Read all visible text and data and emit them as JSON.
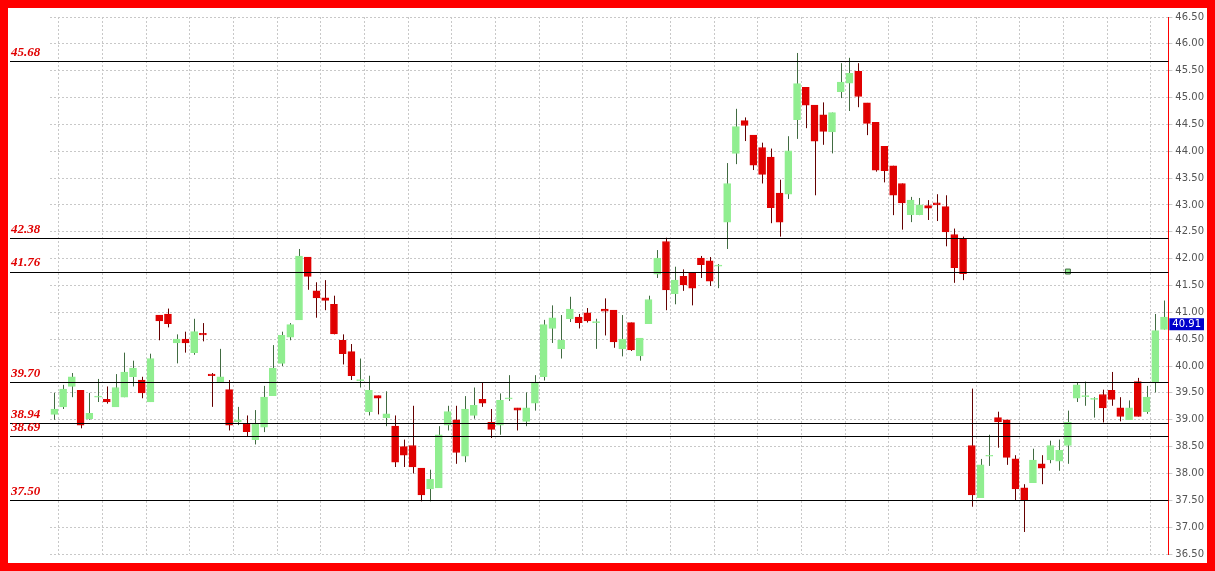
{
  "chart_data": {
    "type": "candlestick",
    "categories": [
      null,
      null,
      null,
      null,
      null,
      null,
      null,
      null,
      null,
      null,
      null,
      null,
      null,
      null,
      null,
      null,
      null,
      null,
      null,
      null,
      null,
      null,
      null,
      null,
      null,
      null,
      null,
      null,
      null,
      null,
      null,
      null,
      null,
      null,
      null,
      null,
      null,
      null,
      null,
      null,
      null,
      null,
      null,
      null,
      null,
      null,
      null,
      null,
      null,
      null,
      null,
      null,
      null,
      null,
      null,
      null,
      null,
      null,
      null,
      null,
      null,
      null,
      null,
      null,
      null,
      null,
      null,
      null,
      null,
      null,
      null,
      null,
      null,
      null,
      null,
      null,
      null,
      null,
      null,
      null,
      null,
      null,
      null,
      null,
      null,
      null,
      null,
      null,
      null,
      null,
      null,
      null,
      null,
      null,
      null,
      null,
      null,
      null,
      null,
      null,
      null,
      null,
      null,
      null,
      null,
      null,
      null,
      null,
      null,
      null,
      null,
      null,
      null,
      null,
      null,
      null,
      null,
      null,
      null,
      null,
      null,
      null,
      null,
      null,
      null,
      null,
      null,
      null
    ],
    "ohlc": [
      [
        39.1,
        39.5,
        39.0,
        39.2
      ],
      [
        39.24,
        39.65,
        39.2,
        39.57
      ],
      [
        39.62,
        39.87,
        39.42,
        39.8
      ],
      [
        39.55,
        39.55,
        38.84,
        38.9
      ],
      [
        39.02,
        39.5,
        39.0,
        39.12
      ],
      [
        39.42,
        39.76,
        39.33,
        39.42
      ],
      [
        39.38,
        39.62,
        39.3,
        39.33
      ],
      [
        39.24,
        39.85,
        39.24,
        39.6
      ],
      [
        39.42,
        40.25,
        39.42,
        39.89
      ],
      [
        39.8,
        40.1,
        39.62,
        39.96
      ],
      [
        39.74,
        39.8,
        39.4,
        39.5
      ],
      [
        39.33,
        40.23,
        39.33,
        40.14
      ],
      [
        40.95,
        40.95,
        40.48,
        40.84
      ],
      [
        40.97,
        41.07,
        40.72,
        40.79
      ],
      [
        40.43,
        40.59,
        40.05,
        40.5
      ],
      [
        40.5,
        40.64,
        40.25,
        40.43
      ],
      [
        40.25,
        40.88,
        40.21,
        40.64
      ],
      [
        40.61,
        40.8,
        40.46,
        40.58
      ],
      [
        39.85,
        39.87,
        39.24,
        39.82
      ],
      [
        39.69,
        40.32,
        39.69,
        39.8
      ],
      [
        39.56,
        39.74,
        38.8,
        38.9
      ],
      [
        38.96,
        39.24,
        38.9,
        39.0
      ],
      [
        38.93,
        39.08,
        38.68,
        38.78
      ],
      [
        38.63,
        39.18,
        38.54,
        38.93
      ],
      [
        38.86,
        39.63,
        38.77,
        39.42
      ],
      [
        39.45,
        40.39,
        39.45,
        39.96
      ],
      [
        40.05,
        40.64,
        40.0,
        40.57
      ],
      [
        40.54,
        40.8,
        40.48,
        40.77
      ],
      [
        40.86,
        42.18,
        40.86,
        42.05
      ],
      [
        42.03,
        42.03,
        41.42,
        41.67
      ],
      [
        41.4,
        41.56,
        40.9,
        41.27
      ],
      [
        41.27,
        41.6,
        41.04,
        41.22
      ],
      [
        41.15,
        41.31,
        40.59,
        40.6
      ],
      [
        40.48,
        40.59,
        40.03,
        40.23
      ],
      [
        40.27,
        40.41,
        39.74,
        39.82
      ],
      [
        39.73,
        40.14,
        39.6,
        39.75
      ],
      [
        39.15,
        39.82,
        39.08,
        39.55
      ],
      [
        39.45,
        39.45,
        39.1,
        39.4
      ],
      [
        39.04,
        39.53,
        38.88,
        39.11
      ],
      [
        38.88,
        39.08,
        38.12,
        38.21
      ],
      [
        38.5,
        38.63,
        38.12,
        38.34
      ],
      [
        38.52,
        39.26,
        38.0,
        38.12
      ],
      [
        38.1,
        38.1,
        37.48,
        37.6
      ],
      [
        37.71,
        38.07,
        37.48,
        37.89
      ],
      [
        37.73,
        38.88,
        37.73,
        38.72
      ],
      [
        38.9,
        39.26,
        38.8,
        39.15
      ],
      [
        39.0,
        39.26,
        38.18,
        38.39
      ],
      [
        38.32,
        39.44,
        38.21,
        39.2
      ],
      [
        39.08,
        39.6,
        39.02,
        39.27
      ],
      [
        39.38,
        39.69,
        39.24,
        39.31
      ],
      [
        38.95,
        39.2,
        38.66,
        38.82
      ],
      [
        38.9,
        39.49,
        38.72,
        39.36
      ],
      [
        39.39,
        39.83,
        39.35,
        39.41
      ],
      [
        39.22,
        39.22,
        38.8,
        39.18
      ],
      [
        38.97,
        39.51,
        38.88,
        39.22
      ],
      [
        39.31,
        39.83,
        39.17,
        39.7
      ],
      [
        39.8,
        40.86,
        39.73,
        40.77
      ],
      [
        40.7,
        41.13,
        40.43,
        40.9
      ],
      [
        40.32,
        40.95,
        40.14,
        40.48
      ],
      [
        40.88,
        41.29,
        40.82,
        41.06
      ],
      [
        40.91,
        40.97,
        40.7,
        40.81
      ],
      [
        40.99,
        41.08,
        40.81,
        40.84
      ],
      [
        40.81,
        40.88,
        40.32,
        40.83
      ],
      [
        41.06,
        41.26,
        40.57,
        41.02
      ],
      [
        41.04,
        41.04,
        40.34,
        40.45
      ],
      [
        40.32,
        40.95,
        40.18,
        40.5
      ],
      [
        40.81,
        40.81,
        40.28,
        40.3
      ],
      [
        40.19,
        40.52,
        40.1,
        40.52
      ],
      [
        40.79,
        41.31,
        40.79,
        41.24
      ],
      [
        41.71,
        42.16,
        41.64,
        42.01
      ],
      [
        42.32,
        42.39,
        41.04,
        41.42
      ],
      [
        41.35,
        41.85,
        41.15,
        41.6
      ],
      [
        41.67,
        41.8,
        41.4,
        41.51
      ],
      [
        41.74,
        41.74,
        41.13,
        41.45
      ],
      [
        42.01,
        42.05,
        41.64,
        41.89
      ],
      [
        41.96,
        42.03,
        41.49,
        41.58
      ],
      [
        41.86,
        41.9,
        41.45,
        41.88
      ],
      [
        42.68,
        43.78,
        42.18,
        43.4
      ],
      [
        43.96,
        44.79,
        43.76,
        44.46
      ],
      [
        44.57,
        44.63,
        44.19,
        44.48
      ],
      [
        44.3,
        44.3,
        43.65,
        43.74
      ],
      [
        44.07,
        44.16,
        43.4,
        43.57
      ],
      [
        43.89,
        44.05,
        42.66,
        42.95
      ],
      [
        43.22,
        43.47,
        42.41,
        42.68
      ],
      [
        43.2,
        44.28,
        43.11,
        44.01
      ],
      [
        44.59,
        45.83,
        44.23,
        45.26
      ],
      [
        45.19,
        45.19,
        44.43,
        44.86
      ],
      [
        44.86,
        44.86,
        43.18,
        44.19
      ],
      [
        44.68,
        44.91,
        44.12,
        44.37
      ],
      [
        44.36,
        44.72,
        43.96,
        44.72
      ],
      [
        45.11,
        45.64,
        44.99,
        45.29
      ],
      [
        45.27,
        45.74,
        44.75,
        45.45
      ],
      [
        45.49,
        45.64,
        44.82,
        45.02
      ],
      [
        44.9,
        44.9,
        44.3,
        44.52
      ],
      [
        44.54,
        44.54,
        43.62,
        43.65
      ],
      [
        44.09,
        44.09,
        43.42,
        43.64
      ],
      [
        43.73,
        43.73,
        42.81,
        43.18
      ],
      [
        43.4,
        43.4,
        42.54,
        43.04
      ],
      [
        42.82,
        43.15,
        42.68,
        43.09
      ],
      [
        42.82,
        43.13,
        42.81,
        43.0
      ],
      [
        42.99,
        43.09,
        42.72,
        42.94
      ],
      [
        43.04,
        43.2,
        42.7,
        43.0
      ],
      [
        42.97,
        43.18,
        42.23,
        42.5
      ],
      [
        42.45,
        42.56,
        41.55,
        41.83
      ],
      [
        42.37,
        42.41,
        41.6,
        41.72
      ],
      [
        38.52,
        39.58,
        37.38,
        37.6
      ],
      [
        37.55,
        38.27,
        37.55,
        38.16
      ],
      [
        38.32,
        38.72,
        38.14,
        38.32
      ],
      [
        39.04,
        39.15,
        38.48,
        38.96
      ],
      [
        39.0,
        39.0,
        38.16,
        38.3
      ],
      [
        38.27,
        38.34,
        37.5,
        37.71
      ],
      [
        37.73,
        37.8,
        36.91,
        37.5
      ],
      [
        37.83,
        38.46,
        37.83,
        38.25
      ],
      [
        38.18,
        38.34,
        37.8,
        38.1
      ],
      [
        38.25,
        38.61,
        38.19,
        38.52
      ],
      [
        38.23,
        38.63,
        38.05,
        38.43
      ],
      [
        38.52,
        39.17,
        38.18,
        38.95
      ],
      [
        39.4,
        39.69,
        39.33,
        39.65
      ],
      [
        39.43,
        39.71,
        39.26,
        39.45
      ],
      [
        39.38,
        39.42,
        39.04,
        39.38
      ],
      [
        39.47,
        39.56,
        38.95,
        39.22
      ],
      [
        39.55,
        39.89,
        39.26,
        39.38
      ],
      [
        39.22,
        39.42,
        38.97,
        39.06
      ],
      [
        39.0,
        39.36,
        39.0,
        39.22
      ],
      [
        39.71,
        39.78,
        39.06,
        39.06
      ],
      [
        39.15,
        39.63,
        39.11,
        39.42
      ],
      [
        39.69,
        40.97,
        39.51,
        40.66
      ],
      [
        40.68,
        41.22,
        40.68,
        40.91
      ]
    ],
    "colors": [
      "#90ee90",
      "#90ee90",
      "#90ee90",
      "#e00000",
      "#90ee90",
      "#90ee90",
      "#e00000",
      "#90ee90",
      "#90ee90",
      "#90ee90",
      "#e00000",
      "#90ee90",
      "#e00000",
      "#e00000",
      "#90ee90",
      "#e00000",
      "#90ee90",
      "#e00000",
      "#e00000",
      "#90ee90",
      "#e00000",
      "#90ee90",
      "#e00000",
      "#90ee90",
      "#90ee90",
      "#90ee90",
      "#90ee90",
      "#90ee90",
      "#90ee90",
      "#e00000",
      "#e00000",
      "#e00000",
      "#e00000",
      "#e00000",
      "#e00000",
      "#90ee90",
      "#90ee90",
      "#e00000",
      "#90ee90",
      "#e00000",
      "#e00000",
      "#e00000",
      "#e00000",
      "#90ee90",
      "#90ee90",
      "#90ee90",
      "#e00000",
      "#90ee90",
      "#90ee90",
      "#e00000",
      "#e00000",
      "#90ee90",
      "#90ee90",
      "#e00000",
      "#90ee90",
      "#90ee90",
      "#90ee90",
      "#90ee90",
      "#90ee90",
      "#90ee90",
      "#e00000",
      "#e00000",
      "#90ee90",
      "#e00000",
      "#e00000",
      "#90ee90",
      "#e00000",
      "#90ee90",
      "#90ee90",
      "#90ee90",
      "#e00000",
      "#90ee90",
      "#e00000",
      "#e00000",
      "#e00000",
      "#e00000",
      "#90ee90",
      "#90ee90",
      "#90ee90",
      "#e00000",
      "#e00000",
      "#e00000",
      "#e00000",
      "#e00000",
      "#90ee90",
      "#90ee90",
      "#e00000",
      "#e00000",
      "#e00000",
      "#90ee90",
      "#90ee90",
      "#90ee90",
      "#e00000",
      "#e00000",
      "#e00000",
      "#e00000",
      "#e00000",
      "#e00000",
      "#90ee90",
      "#90ee90",
      "#e00000",
      "#e00000",
      "#e00000",
      "#e00000",
      "#e00000",
      "#e00000",
      "#90ee90",
      "#90ee90",
      "#e00000",
      "#e00000",
      "#e00000",
      "#e00000",
      "#90ee90",
      "#e00000",
      "#90ee90",
      "#90ee90",
      "#90ee90",
      "#90ee90",
      "#90ee90",
      "#90ee90",
      "#e00000",
      "#e00000",
      "#e00000",
      "#90ee90",
      "#e00000",
      "#90ee90",
      "#90ee90",
      "#90ee90"
    ],
    "series": [
      {
        "type": "scatter",
        "marker": "square",
        "color": "#90ee90",
        "values": [
          null,
          null,
          null,
          null,
          null,
          null,
          null,
          null,
          null,
          null,
          null,
          null,
          null,
          null,
          null,
          null,
          null,
          null,
          null,
          null,
          null,
          null,
          null,
          null,
          null,
          null,
          null,
          null,
          null,
          null,
          null,
          null,
          null,
          null,
          null,
          null,
          null,
          null,
          null,
          null,
          null,
          null,
          null,
          null,
          null,
          null,
          null,
          null,
          null,
          null,
          null,
          null,
          null,
          null,
          null,
          null,
          null,
          null,
          null,
          null,
          null,
          null,
          null,
          null,
          null,
          null,
          null,
          null,
          null,
          null,
          null,
          null,
          null,
          null,
          null,
          null,
          null,
          null,
          null,
          null,
          null,
          null,
          null,
          null,
          null,
          null,
          null,
          null,
          null,
          null,
          null,
          null,
          null,
          null,
          null,
          null,
          null,
          null,
          null,
          null,
          null,
          null,
          null,
          null,
          null,
          null,
          null,
          null,
          null,
          null,
          null,
          null,
          null,
          null,
          null,
          null,
          41.76,
          null,
          null,
          null,
          null,
          null,
          null,
          null,
          null,
          null,
          null,
          null
        ]
      }
    ],
    "ylim": [
      36.5,
      46.5
    ],
    "yticks": [
      {
        "value": 36.5,
        "label": "36.50"
      },
      {
        "value": 37,
        "label": "37.00"
      },
      {
        "value": 37.5,
        "label": "37.50"
      },
      {
        "value": 38,
        "label": "38.00"
      },
      {
        "value": 38.5,
        "label": "38.50"
      },
      {
        "value": 39,
        "label": "39.00"
      },
      {
        "value": 39.5,
        "label": "39.50"
      },
      {
        "value": 40,
        "label": "40.00"
      },
      {
        "value": 40.5,
        "label": "40.50"
      },
      {
        "value": 41,
        "label": "41.00"
      },
      {
        "value": 41.5,
        "label": "41.50"
      },
      {
        "value": 42,
        "label": "42.00"
      },
      {
        "value": 42.5,
        "label": "42.50"
      },
      {
        "value": 43,
        "label": "43.00"
      },
      {
        "value": 43.5,
        "label": "43.50"
      },
      {
        "value": 44,
        "label": "44.00"
      },
      {
        "value": 44.5,
        "label": "44.50"
      },
      {
        "value": 45,
        "label": "45.00"
      },
      {
        "value": 45.5,
        "label": "45.50"
      },
      {
        "value": 46,
        "label": "46.00"
      },
      {
        "value": 46.5,
        "label": "46.50"
      }
    ],
    "ref_lines": [
      {
        "axis": "y",
        "value": 45.68,
        "label": "45.68",
        "color": "#000000"
      },
      {
        "axis": "y",
        "value": 42.38,
        "label": "42.38",
        "color": "#000000"
      },
      {
        "axis": "y",
        "value": 41.76,
        "label": "41.76",
        "color": "#000000"
      },
      {
        "axis": "y",
        "value": 39.7,
        "label": "39.70",
        "color": "#000000"
      },
      {
        "axis": "y",
        "value": 38.94,
        "label": "38.94",
        "color": "#000000"
      },
      {
        "axis": "y",
        "value": 38.69,
        "label": "38.69",
        "color": "#000000"
      },
      {
        "axis": "y",
        "value": 37.5,
        "label": "37.50",
        "color": "#000000"
      }
    ],
    "annotations": [
      "40.91"
    ],
    "grid": true,
    "legend": false,
    "tick_labels": "y"
  }
}
